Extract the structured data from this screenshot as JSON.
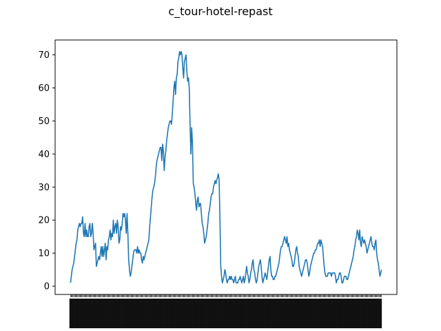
{
  "chart_data": {
    "type": "line",
    "title": "c_tour-hotel-repast",
    "xlabel": "",
    "ylabel": "",
    "ylim": [
      -2.5,
      74.5
    ],
    "yticks": [
      0,
      10,
      20,
      30,
      40,
      50,
      60,
      70
    ],
    "grid": false,
    "legend": "none",
    "x_tick_labels": "dense, overlapping rotated labels (unreadable)",
    "colors": {
      "line": "#1f77b4",
      "axes": "#000000",
      "background": "#ffffff"
    },
    "series": [
      {
        "values": [
          1,
          3,
          5,
          6,
          7,
          9,
          11,
          13,
          14,
          17,
          18,
          19,
          18,
          19,
          19,
          21,
          16,
          15,
          19,
          15,
          17,
          15,
          15,
          18,
          19,
          15,
          16,
          19,
          16,
          11,
          12,
          13,
          6,
          7,
          8,
          9,
          8,
          10,
          12,
          9,
          12,
          9,
          11,
          13,
          8,
          12,
          11,
          14,
          15,
          17,
          14,
          16,
          15,
          20,
          16,
          18,
          19,
          16,
          20,
          18,
          13,
          14,
          18,
          17,
          19,
          22,
          21,
          22,
          20,
          16,
          22,
          16,
          8,
          5,
          3,
          4,
          6,
          8,
          10,
          11,
          11,
          11,
          10,
          12,
          10,
          11,
          10,
          10,
          8,
          7,
          9,
          8,
          9,
          10,
          11,
          12,
          13,
          14,
          18,
          21,
          24,
          27,
          29,
          30,
          31,
          33,
          36,
          38,
          39,
          40,
          41,
          42,
          42,
          38,
          43,
          41,
          35,
          39,
          41,
          44,
          46,
          48,
          49,
          50,
          50,
          49,
          52,
          56,
          60,
          62,
          58,
          63,
          64,
          68,
          69,
          71,
          70,
          71,
          70,
          66,
          63,
          68,
          69,
          70,
          65,
          62,
          63,
          60,
          49,
          40,
          48,
          43,
          31,
          30,
          28,
          25,
          23,
          26,
          27,
          24,
          25,
          25,
          22,
          19,
          18,
          16,
          13,
          14,
          15,
          17,
          19,
          22,
          23,
          25,
          27,
          28,
          28,
          30,
          31,
          32,
          31,
          32,
          33,
          34,
          32,
          20,
          6,
          3,
          1,
          2,
          3,
          5,
          4,
          2,
          1,
          2,
          2,
          3,
          2,
          3,
          2,
          2,
          1,
          2,
          3,
          1,
          1,
          1,
          2,
          2,
          3,
          2,
          1,
          2,
          3,
          1,
          2,
          4,
          6,
          4,
          3,
          1,
          2,
          4,
          5,
          7,
          8,
          5,
          4,
          2,
          1,
          2,
          4,
          6,
          7,
          8,
          6,
          3,
          1,
          2,
          3,
          4,
          3,
          2,
          4,
          6,
          8,
          9,
          5,
          3,
          3,
          2,
          2,
          3,
          3,
          4,
          5,
          6,
          7,
          9,
          11,
          12,
          12,
          13,
          14,
          15,
          14,
          13,
          15,
          12,
          13,
          11,
          10,
          9,
          8,
          6,
          6,
          7,
          9,
          11,
          12,
          10,
          9,
          6,
          5,
          4,
          3,
          4,
          5,
          6,
          7,
          8,
          8,
          7,
          5,
          3,
          4,
          6,
          7,
          8,
          9,
          10,
          10,
          11,
          11,
          12,
          13,
          13,
          14,
          12,
          14,
          13,
          12,
          9,
          6,
          4,
          3,
          3,
          3,
          4,
          4,
          4,
          4,
          3,
          4,
          4,
          4,
          4,
          3,
          1,
          2,
          2,
          3,
          4,
          4,
          3,
          1,
          1,
          2,
          3,
          3,
          3,
          2,
          2,
          3,
          4,
          5,
          6,
          7,
          8,
          9,
          11,
          12,
          14,
          15,
          17,
          16,
          14,
          17,
          13,
          12,
          15,
          14,
          13,
          14,
          13,
          12,
          10,
          11,
          12,
          13,
          14,
          15,
          13,
          12,
          12,
          11,
          13,
          14,
          10,
          8,
          7,
          5,
          3,
          4,
          5
        ]
      }
    ]
  }
}
